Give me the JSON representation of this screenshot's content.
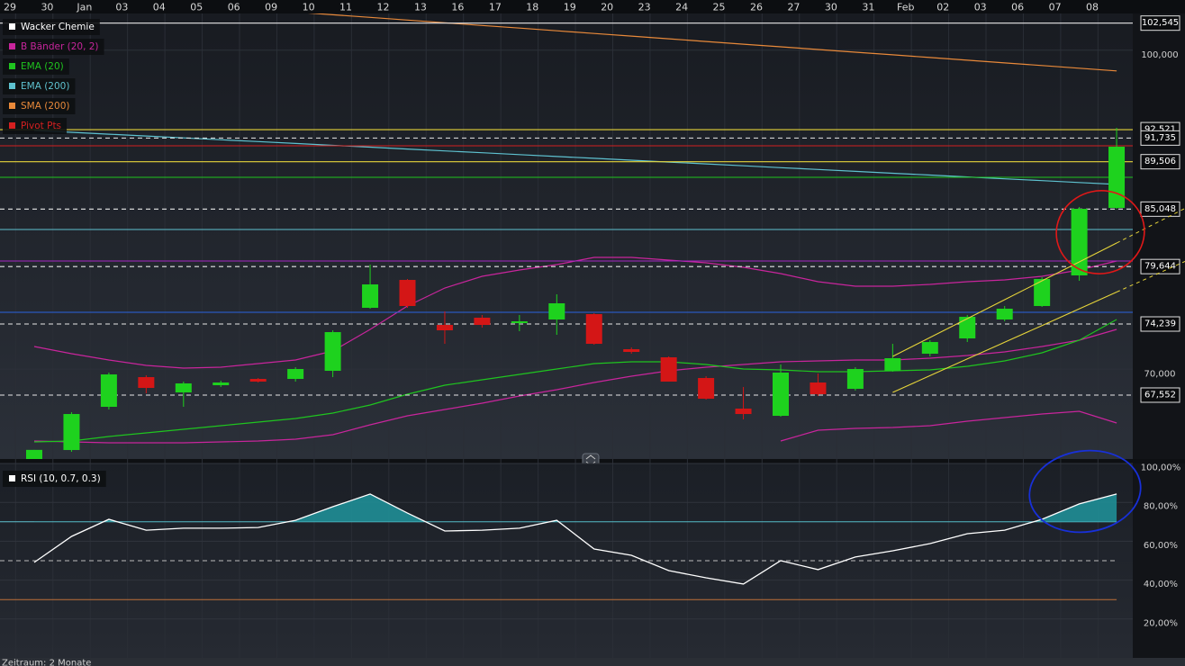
{
  "chart_data": [
    {
      "type": "candlestick",
      "name": "Wacker Chemie",
      "legend_color": "#ffffff",
      "categories": [
        "29",
        "30",
        "Jan",
        "03",
        "04",
        "05",
        "06",
        "09",
        "10",
        "11",
        "12",
        "13",
        "16",
        "17",
        "18",
        "19",
        "20",
        "23",
        "24",
        "25",
        "26",
        "27",
        "30",
        "31",
        "Feb",
        "02",
        "03",
        "06",
        "07",
        "08"
      ],
      "open": [
        61540,
        62385,
        66449,
        69243,
        67804,
        68481,
        69074,
        69074,
        69836,
        75763,
        78388,
        74154,
        74832,
        74324,
        74662,
        75170,
        71868,
        71106,
        69159,
        66280,
        65603,
        68735,
        68143,
        69836,
        71445,
        72884,
        74662,
        75932,
        78811,
        85161
      ],
      "high": [
        62400,
        65942,
        69667,
        69413,
        68820,
        68905,
        69159,
        70175,
        73646,
        79827,
        78473,
        75424,
        75086,
        75086,
        77033,
        75255,
        72037,
        71191,
        69328,
        68312,
        70429,
        69582,
        70175,
        72376,
        72714,
        75086,
        75932,
        78643,
        85246,
        92697
      ],
      "low": [
        61540,
        62216,
        66195,
        67719,
        66449,
        68312,
        68735,
        68820,
        69243,
        75678,
        75763,
        72376,
        73900,
        73562,
        73223,
        72291,
        71445,
        68820,
        67127,
        65264,
        65518,
        67465,
        67973,
        69751,
        71191,
        72545,
        74493,
        75848,
        78303,
        85077
      ],
      "close": [
        62400,
        65772,
        69497,
        68227,
        68651,
        68735,
        68820,
        70006,
        73477,
        77964,
        75932,
        73646,
        74154,
        74493,
        76186,
        72376,
        71614,
        68820,
        67211,
        65772,
        69667,
        67634,
        70006,
        71022,
        72545,
        74916,
        75678,
        78473,
        85077,
        90920
      ],
      "up_color": "#1ed21e",
      "down_color": "#d41616",
      "ylim": [
        61540,
        103450
      ],
      "yticks": [
        {
          "value": 100000,
          "label": "100,000"
        },
        {
          "value": 70000,
          "label": "70,000"
        }
      ],
      "indicators": [
        {
          "name": "B Bänder (20, 2)",
          "color": "#c8259c",
          "lines": [
            [
              72122,
              71445,
              70852,
              70344,
              70090,
              70175,
              70513,
              70852,
              71699,
              73731,
              75932,
              77625,
              78726,
              79319,
              79827,
              80504,
              80504,
              80250,
              79997,
              79573,
              78981,
              78219,
              77795,
              77795,
              77964,
              78219,
              78388,
              78726,
              79319,
              80166
            ],
            [
              63232,
              63147,
              63062,
              63062,
              63062,
              63147,
              63232,
              63401,
              63825,
              64756,
              65603,
              66195,
              66788,
              67465,
              68058,
              68735,
              69328,
              69836,
              70175,
              70429,
              70683,
              70767,
              70852,
              70852,
              71022,
              71275,
              71614,
              72122,
              72715,
              73731
            ],
            [
              null,
              null,
              null,
              null,
              null,
              null,
              null,
              null,
              null,
              null,
              null,
              null,
              null,
              null,
              null,
              null,
              null,
              null,
              null,
              null,
              63232,
              64248,
              64417,
              64502,
              64672,
              65095,
              65434,
              65772,
              66026,
              64925
            ]
          ]
        },
        {
          "name": "EMA (20)",
          "color": "#1fc41f",
          "lines": [
            [
              63147,
              63232,
              63655,
              63994,
              64333,
              64672,
              65010,
              65349,
              65857,
              66619,
              67635,
              68482,
              68989,
              69497,
              70005,
              70513,
              70683,
              70683,
              70429,
              70005,
              69921,
              69751,
              69751,
              69836,
              69921,
              70259,
              70767,
              71529,
              72715,
              74662
            ]
          ]
        },
        {
          "name": "EMA (200)",
          "color": "#5ec2d0",
          "lines": [
            [
              92450,
              92275,
              92100,
              91925,
              91750,
              91575,
              91400,
              91225,
              91050,
              90875,
              90700,
              90525,
              90350,
              90175,
              90000,
              89825,
              89650,
              89475,
              89300,
              89125,
              88950,
              88775,
              88600,
              88425,
              88250,
              88075,
              87900,
              87725,
              87550,
              87375
            ]
          ]
        },
        {
          "name": "SMA (200)",
          "color": "#e8893a",
          "lines": [
            [
              105348,
              105097,
              104845,
              104593,
              104342,
              104090,
              103838,
              103587,
              103335,
              103083,
              102832,
              102580,
              102328,
              102077,
              101825,
              101574,
              101322,
              101070,
              100819,
              100567,
              100316,
              100064,
              99812,
              99561,
              99309,
              99057,
              98806,
              98554,
              98303,
              98051
            ]
          ]
        },
        {
          "name": "Pivot Pts",
          "color": "#d42020",
          "levels": [
            {
              "value": 91004,
              "color": "#d42020"
            },
            {
              "value": 88040,
              "color": "#1fc41f"
            },
            {
              "value": 83130,
              "color": "#5ec2d0"
            },
            {
              "value": 80166,
              "color": "#a526c4"
            },
            {
              "value": 75340,
              "color": "#2a62e0"
            }
          ]
        }
      ],
      "price_levels": [
        {
          "value": 102545,
          "label": "102,545",
          "color": "#e8e8e8",
          "dashed": false
        },
        {
          "value": 92521,
          "label": "92,521",
          "color": "#e6d43a",
          "dashed": false
        },
        {
          "value": 91735,
          "label": "91,735",
          "color": "#e8e8e8",
          "dashed": true
        },
        {
          "value": 89506,
          "label": "89,506",
          "color": "#e6d43a",
          "dashed": false
        },
        {
          "value": 85048,
          "label": "85,048",
          "color": "#e8e8e8",
          "dashed": true
        },
        {
          "value": 79644,
          "label": "79,644",
          "color": "#e8e8e8",
          "dashed": true
        },
        {
          "value": 74239,
          "label": "74,239",
          "color": "#e8e8e8",
          "dashed": true
        },
        {
          "value": 67552,
          "label": "67,552",
          "color": "#e8e8e8",
          "dashed": true
        }
      ],
      "trend_channel": {
        "color": "#e6d43a",
        "lines": [
          [
            null,
            null,
            null,
            null,
            null,
            null,
            null,
            null,
            null,
            null,
            null,
            null,
            null,
            null,
            null,
            null,
            null,
            null,
            null,
            null,
            null,
            null,
            null,
            71191,
            72969,
            74747,
            76525,
            78303,
            80081,
            81859
          ],
          [
            null,
            null,
            null,
            null,
            null,
            null,
            null,
            null,
            null,
            null,
            null,
            null,
            null,
            null,
            null,
            null,
            null,
            null,
            null,
            null,
            null,
            null,
            null,
            67804,
            69378,
            70951,
            72525,
            74098,
            75672,
            77245
          ]
        ]
      }
    },
    {
      "type": "line",
      "name": "RSI (10, 0.7, 0.3)",
      "color": "#ffffff",
      "values": [
        49.1,
        62.5,
        71.3,
        65.7,
        66.7,
        66.7,
        67.1,
        70.8,
        77.8,
        84.3,
        74.5,
        65.3,
        65.7,
        66.7,
        70.8,
        56.0,
        52.8,
        44.9,
        41.2,
        38.0,
        50.0,
        45.4,
        51.9,
        55.1,
        58.8,
        63.9,
        65.7,
        71.3,
        79.2,
        84.3
      ],
      "ylim": [
        0,
        100
      ],
      "yticks": [
        {
          "value": 100,
          "label": "100,00%"
        },
        {
          "value": 80,
          "label": "80,00%"
        },
        {
          "value": 60,
          "label": "60,00%"
        },
        {
          "value": 40,
          "label": "40,00%"
        },
        {
          "value": 20,
          "label": "20,00%"
        }
      ],
      "levels": [
        {
          "value": 70,
          "color": "#5ec2d0",
          "dashed": false
        },
        {
          "value": 50,
          "color": "#bbbbbb",
          "dashed": true
        },
        {
          "value": 30,
          "color": "#c0703a",
          "dashed": false
        }
      ],
      "fill_color": "#1f8e96"
    }
  ],
  "footer": "Zeitraum: 2 Monate"
}
